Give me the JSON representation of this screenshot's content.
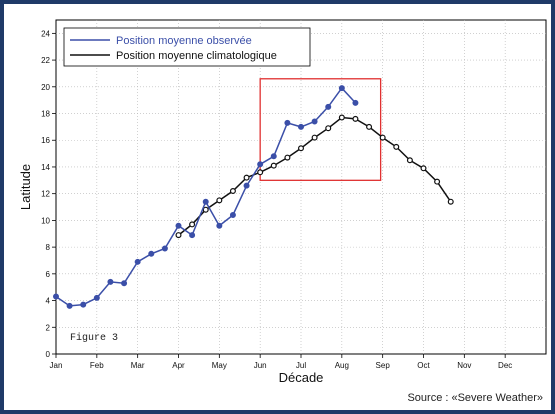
{
  "source_note": "Source : «Severe Weather»",
  "chart_data": {
    "type": "line",
    "xlabel": "Décade",
    "ylabel": "Latitude",
    "annotation": "Figure 3",
    "ylim": [
      0,
      25
    ],
    "yticks": [
      0,
      2,
      4,
      6,
      8,
      10,
      12,
      14,
      16,
      18,
      20,
      22,
      24
    ],
    "x_categories": [
      "Jan",
      "Feb",
      "Mar",
      "Apr",
      "May",
      "Jun",
      "Jul",
      "Aug",
      "Sep",
      "Oct",
      "Nov",
      "Dec"
    ],
    "grid": true,
    "legend_position": "top-left",
    "highlight_box": {
      "x": [
        5.0,
        7.95
      ],
      "y": [
        13.0,
        20.6
      ],
      "color": "#e03030"
    },
    "series": [
      {
        "name": "Position moyenne observée",
        "color": "#3b4fa8",
        "marker": "filled-circle",
        "x": [
          0,
          0.333,
          0.667,
          1.0,
          1.333,
          1.667,
          2.0,
          2.333,
          2.667,
          3.0,
          3.333,
          3.667,
          4.0,
          4.333,
          4.667,
          5.0,
          5.333,
          5.667,
          6.0,
          6.333,
          6.667,
          7.0,
          7.333
        ],
        "y": [
          4.3,
          3.6,
          3.7,
          4.2,
          5.4,
          5.3,
          6.9,
          7.5,
          7.9,
          9.6,
          8.9,
          11.4,
          9.6,
          10.4,
          12.6,
          14.2,
          14.8,
          17.3,
          17.0,
          17.4,
          18.5,
          19.9,
          18.8
        ]
      },
      {
        "name": "Position moyenne climatologique",
        "color": "#111111",
        "marker": "open-circle",
        "x": [
          3.0,
          3.333,
          3.667,
          4.0,
          4.333,
          4.667,
          5.0,
          5.333,
          5.667,
          6.0,
          6.333,
          6.667,
          7.0,
          7.333,
          7.667,
          8.0,
          8.333,
          8.667,
          9.0,
          9.333,
          9.667
        ],
        "y": [
          8.9,
          9.7,
          10.8,
          11.5,
          12.2,
          13.2,
          13.6,
          14.1,
          14.7,
          15.4,
          16.2,
          16.9,
          17.7,
          17.6,
          17.0,
          16.2,
          15.5,
          14.5,
          13.9,
          12.9,
          11.4
        ]
      }
    ]
  }
}
